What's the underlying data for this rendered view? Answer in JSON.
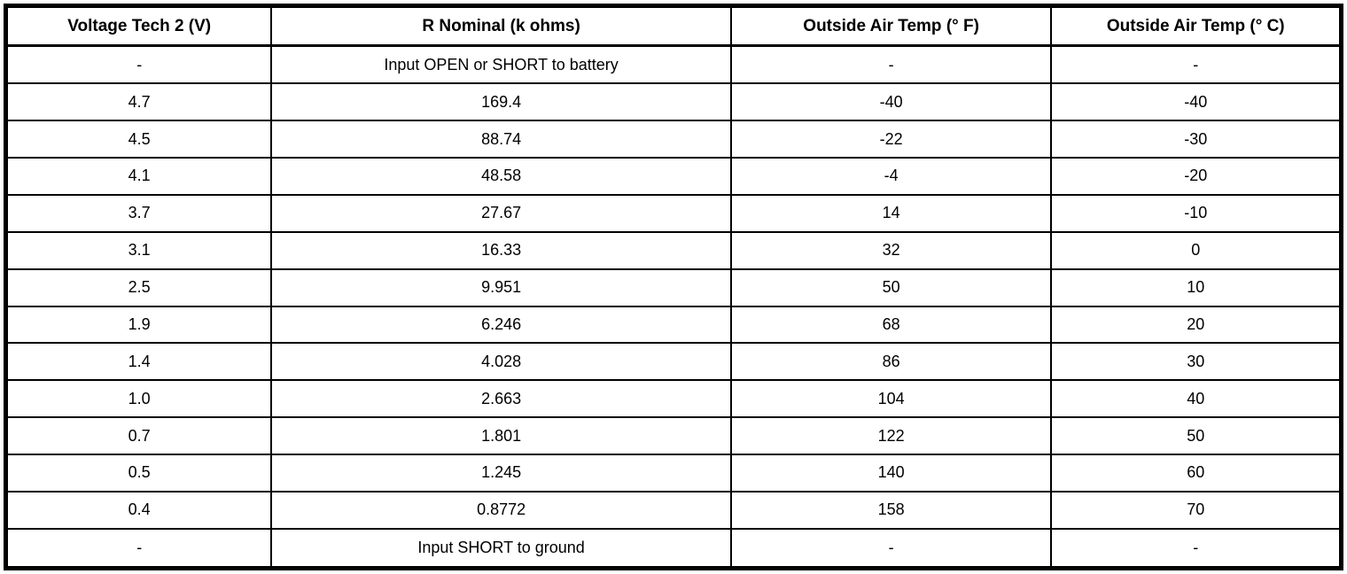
{
  "table": {
    "headers": [
      "Voltage Tech 2 (V)",
      "R Nominal (k ohms)",
      "Outside Air Temp (° F)",
      "Outside Air Temp (° C)"
    ],
    "rows": [
      [
        "-",
        "Input OPEN or SHORT to battery",
        "-",
        "-"
      ],
      [
        "4.7",
        "169.4",
        "-40",
        "-40"
      ],
      [
        "4.5",
        "88.74",
        "-22",
        "-30"
      ],
      [
        "4.1",
        "48.58",
        "-4",
        "-20"
      ],
      [
        "3.7",
        "27.67",
        "14",
        "-10"
      ],
      [
        "3.1",
        "16.33",
        "32",
        "0"
      ],
      [
        "2.5",
        "9.951",
        "50",
        "10"
      ],
      [
        "1.9",
        "6.246",
        "68",
        "20"
      ],
      [
        "1.4",
        "4.028",
        "86",
        "30"
      ],
      [
        "1.0",
        "2.663",
        "104",
        "40"
      ],
      [
        "0.7",
        "1.801",
        "122",
        "50"
      ],
      [
        "0.5",
        "1.245",
        "140",
        "60"
      ],
      [
        "0.4",
        "0.8772",
        "158",
        "70"
      ],
      [
        "-",
        "Input SHORT to ground",
        "-",
        "-"
      ]
    ],
    "colors": {
      "border": "#000000",
      "background": "#ffffff",
      "text": "#000000"
    }
  }
}
